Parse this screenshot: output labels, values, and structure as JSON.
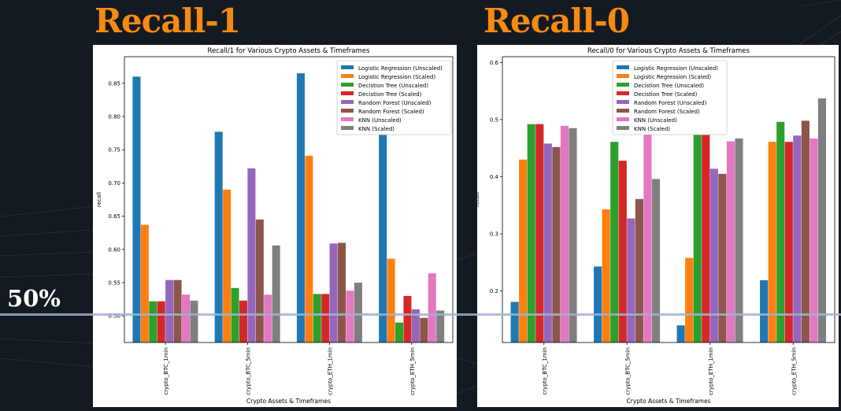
{
  "slide": {
    "left_heading": "Recall-1",
    "right_heading": "Recall-0",
    "threshold_label": "50%"
  },
  "colors": {
    "background": "#141a22",
    "heading": "#f58a13",
    "threshold_line": "#9fb1cf",
    "series": [
      "#1f77b4",
      "#ff7f0e",
      "#2ca02c",
      "#d62728",
      "#9467bd",
      "#8c564b",
      "#e377c2",
      "#7f7f7f"
    ]
  },
  "chart_data": [
    {
      "type": "bar",
      "title": "Recall/1 for Various Crypto Assets & Timeframes",
      "xlabel": "Crypto Assets & Timeframes",
      "ylabel": "recall",
      "ylim": [
        0.46,
        0.89
      ],
      "yticks": [
        "0.50",
        "0.55",
        "0.60",
        "0.65",
        "0.70",
        "0.75",
        "0.80",
        "0.85"
      ],
      "legend_position": "top-right",
      "categories": [
        "crypto_BTC_1min",
        "crypto_BTC_5min",
        "crypto_ETH_1min",
        "crypto_ETH_5min"
      ],
      "series": [
        {
          "name": "Logistic Regression (Unscaled)",
          "values": [
            0.86,
            0.777,
            0.865,
            0.815
          ]
        },
        {
          "name": "Logistic Regression (Scaled)",
          "values": [
            0.637,
            0.69,
            0.741,
            0.586
          ]
        },
        {
          "name": "Decistion Tree  (Unscaled)",
          "values": [
            0.522,
            0.542,
            0.533,
            0.49
          ]
        },
        {
          "name": "Decistion Tree (Scaled)",
          "values": [
            0.522,
            0.523,
            0.533,
            0.53
          ]
        },
        {
          "name": "Random Forest  (Unscaled)",
          "values": [
            0.554,
            0.722,
            0.609,
            0.51
          ]
        },
        {
          "name": "Random Forest (Scaled)",
          "values": [
            0.554,
            0.645,
            0.61,
            0.497
          ]
        },
        {
          "name": "KNN  (Unscaled)",
          "values": [
            0.532,
            0.532,
            0.538,
            0.564
          ]
        },
        {
          "name": "KNN (Scaled)",
          "values": [
            0.523,
            0.606,
            0.55,
            0.508
          ]
        }
      ]
    },
    {
      "type": "bar",
      "title": "Recall/0 for Various Crypto Assets & Timeframes",
      "xlabel": "Crypto Assets & Timeframes",
      "ylabel": "recall",
      "ylim": [
        0.11,
        0.61
      ],
      "yticks": [
        "0.2",
        "0.3",
        "0.4",
        "0.5",
        "0.6"
      ],
      "legend_position": "top-center",
      "categories": [
        "crypto_BTC_1min",
        "crypto_BTC_5min",
        "crypto_ETH_1min",
        "crypto_ETH_5min"
      ],
      "series": [
        {
          "name": "Logistic Regression (Unscaled)",
          "values": [
            0.181,
            0.243,
            0.14,
            0.219
          ]
        },
        {
          "name": "Logistic Regression (Scaled)",
          "values": [
            0.43,
            0.343,
            0.258,
            0.461
          ]
        },
        {
          "name": "Decistion Tree  (Unscaled)",
          "values": [
            0.492,
            0.461,
            0.475,
            0.496
          ]
        },
        {
          "name": "Decistion Tree (Scaled)",
          "values": [
            0.492,
            0.428,
            0.475,
            0.461
          ]
        },
        {
          "name": "Random Forest  (Unscaled)",
          "values": [
            0.458,
            0.327,
            0.414,
            0.472
          ]
        },
        {
          "name": "Random Forest (Scaled)",
          "values": [
            0.452,
            0.361,
            0.405,
            0.498
          ]
        },
        {
          "name": "KNN  (Unscaled)",
          "values": [
            0.489,
            0.52,
            0.462,
            0.467
          ]
        },
        {
          "name": "KNN (Scaled)",
          "values": [
            0.485,
            0.396,
            0.467,
            0.537
          ]
        }
      ]
    }
  ]
}
